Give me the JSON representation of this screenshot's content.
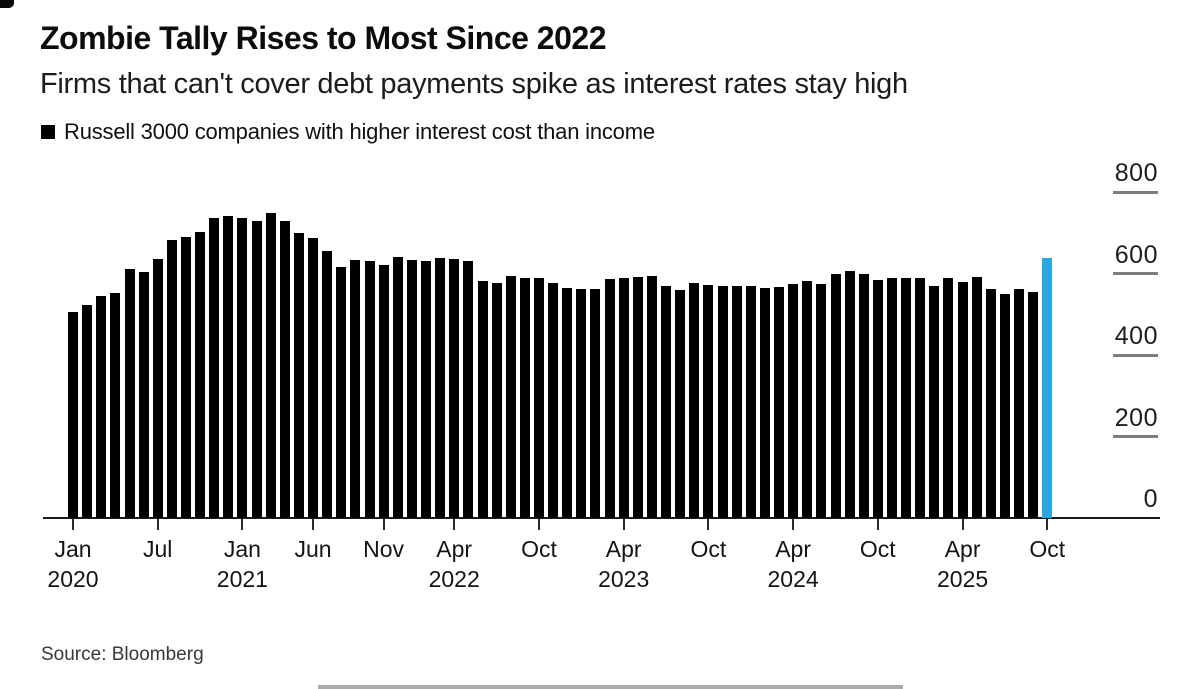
{
  "header": {
    "title": "Zombie Tally Rises to Most Since 2022",
    "subtitle": "Firms that can't cover debt payments spike as interest rates stay high",
    "legend": {
      "label": "Russell 3000 companies with higher interest cost than income",
      "swatch_color": "#000000"
    }
  },
  "chart_data": {
    "type": "bar",
    "title": "Zombie Tally Rises to Most Since 2022",
    "subtitle": "Firms that can't cover debt payments spike as interest rates stay high",
    "series_name": "Russell 3000 companies with higher interest cost than income",
    "bar_color": "#000000",
    "highlight_color": "#2BA7E0",
    "highlight_last_bar": true,
    "legend_position": "top-left",
    "grid": false,
    "y_axis_side": "right",
    "ylim": [
      0,
      800
    ],
    "yticks": [
      0,
      200,
      400,
      600,
      800
    ],
    "categories": [
      "Jan 2020",
      "Feb 2020",
      "Mar 2020",
      "Apr 2020",
      "May 2020",
      "Jun 2020",
      "Jul 2020",
      "Aug 2020",
      "Sep 2020",
      "Oct 2020",
      "Nov 2020",
      "Dec 2020",
      "Jan 2021",
      "Feb 2021",
      "Mar 2021",
      "Apr 2021",
      "May 2021",
      "Jun 2021",
      "Jul 2021",
      "Aug 2021",
      "Sep 2021",
      "Oct 2021",
      "Nov 2021",
      "Dec 2021",
      "Jan 2022",
      "Feb 2022",
      "Mar 2022",
      "Apr 2022",
      "May 2022",
      "Jun 2022",
      "Jul 2022",
      "Aug 2022",
      "Sep 2022",
      "Oct 2022",
      "Nov 2022",
      "Dec 2022",
      "Jan 2023",
      "Feb 2023",
      "Mar 2023",
      "Apr 2023",
      "May 2023",
      "Jun 2023",
      "Jul 2023",
      "Aug 2023",
      "Sep 2023",
      "Oct 2023",
      "Nov 2023",
      "Dec 2023",
      "Jan 2024",
      "Feb 2024",
      "Mar 2024",
      "Apr 2024",
      "May 2024",
      "Jun 2024",
      "Jul 2024",
      "Aug 2024",
      "Sep 2024",
      "Oct 2024",
      "Nov 2024",
      "Dec 2024",
      "Jan 2025",
      "Feb 2025",
      "Mar 2025",
      "Apr 2025",
      "May 2025",
      "Jun 2025",
      "Jul 2025",
      "Aug 2025",
      "Sep 2025",
      "Oct 2025"
    ],
    "values": [
      505,
      523,
      545,
      551,
      612,
      603,
      635,
      683,
      689,
      701,
      736,
      741,
      737,
      728,
      748,
      730,
      699,
      688,
      654,
      617,
      632,
      630,
      622,
      640,
      632,
      630,
      637,
      635,
      630,
      581,
      576,
      594,
      590,
      588,
      577,
      564,
      563,
      562,
      587,
      590,
      591,
      595,
      569,
      559,
      577,
      573,
      570,
      570,
      570,
      565,
      566,
      574,
      581,
      574,
      598,
      607,
      599,
      583,
      588,
      588,
      588,
      569,
      588,
      580,
      591,
      563,
      550,
      561,
      554,
      639
    ],
    "xticks": [
      {
        "index": 0,
        "month": "Jan",
        "year": "2020"
      },
      {
        "index": 6,
        "month": "Jul"
      },
      {
        "index": 12,
        "month": "Jan",
        "year": "2021"
      },
      {
        "index": 17,
        "month": "Jun"
      },
      {
        "index": 22,
        "month": "Nov"
      },
      {
        "index": 27,
        "month": "Apr",
        "year": "2022"
      },
      {
        "index": 33,
        "month": "Oct"
      },
      {
        "index": 39,
        "month": "Apr",
        "year": "2023"
      },
      {
        "index": 45,
        "month": "Oct"
      },
      {
        "index": 51,
        "month": "Apr",
        "year": "2024"
      },
      {
        "index": 57,
        "month": "Oct"
      },
      {
        "index": 63,
        "month": "Apr",
        "year": "2025"
      },
      {
        "index": 69,
        "month": "Oct"
      }
    ]
  },
  "footer": {
    "source": "Source: Bloomberg"
  }
}
